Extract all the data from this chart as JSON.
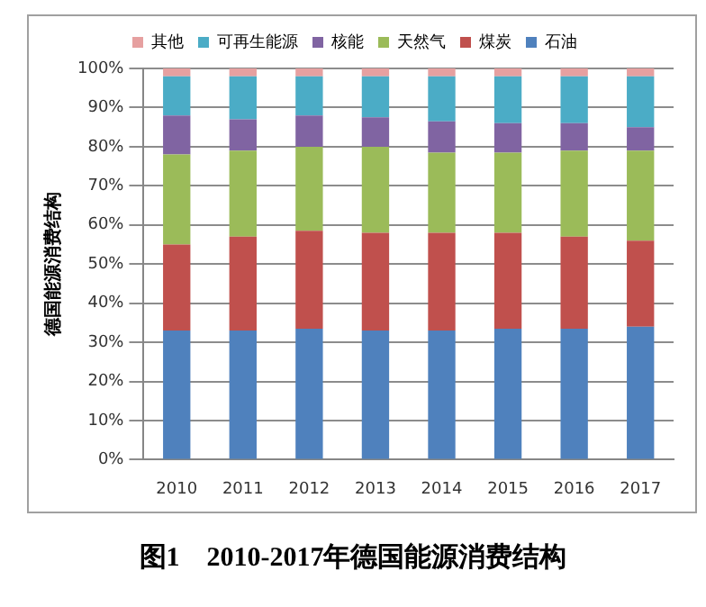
{
  "chart_data": {
    "type": "bar",
    "title": "图1　2010-2017年德国能源消费结构",
    "ylabel": "德国能源消费结构",
    "categories": [
      "2010",
      "2011",
      "2012",
      "2013",
      "2014",
      "2015",
      "2016",
      "2017"
    ],
    "stacked": true,
    "ylim": [
      0,
      100
    ],
    "yticks": [
      {
        "value": 0,
        "label": "0%"
      },
      {
        "value": 10,
        "label": "10%"
      },
      {
        "value": 20,
        "label": "20%"
      },
      {
        "value": 30,
        "label": "30%"
      },
      {
        "value": 40,
        "label": "40%"
      },
      {
        "value": 50,
        "label": "50%"
      },
      {
        "value": 60,
        "label": "60%"
      },
      {
        "value": 70,
        "label": "70%"
      },
      {
        "value": 80,
        "label": "80%"
      },
      {
        "value": 90,
        "label": "90%"
      },
      {
        "value": 100,
        "label": "100%"
      }
    ],
    "grid": "y",
    "legend": "top",
    "series": [
      {
        "name": "石油",
        "color": "#4f81bd",
        "values": [
          33,
          33,
          33.5,
          33,
          33,
          33.5,
          33.5,
          34
        ]
      },
      {
        "name": "煤炭",
        "color": "#c0504d",
        "values": [
          22,
          24,
          25,
          25,
          25,
          24.5,
          23.5,
          22
        ]
      },
      {
        "name": "天然气",
        "color": "#9bbb59",
        "values": [
          23,
          22,
          21.5,
          22,
          20.5,
          20.5,
          22,
          23
        ]
      },
      {
        "name": "核能",
        "color": "#8064a2",
        "values": [
          10,
          8,
          8,
          7.5,
          8,
          7.5,
          7,
          6
        ]
      },
      {
        "name": "可再生能源",
        "color": "#4bacc6",
        "values": [
          10,
          11,
          10,
          10.5,
          11.5,
          12,
          12,
          13
        ]
      },
      {
        "name": "其他",
        "color": "#e6a0a0",
        "values": [
          2,
          2,
          2,
          2,
          2,
          2,
          2,
          2
        ]
      }
    ]
  }
}
